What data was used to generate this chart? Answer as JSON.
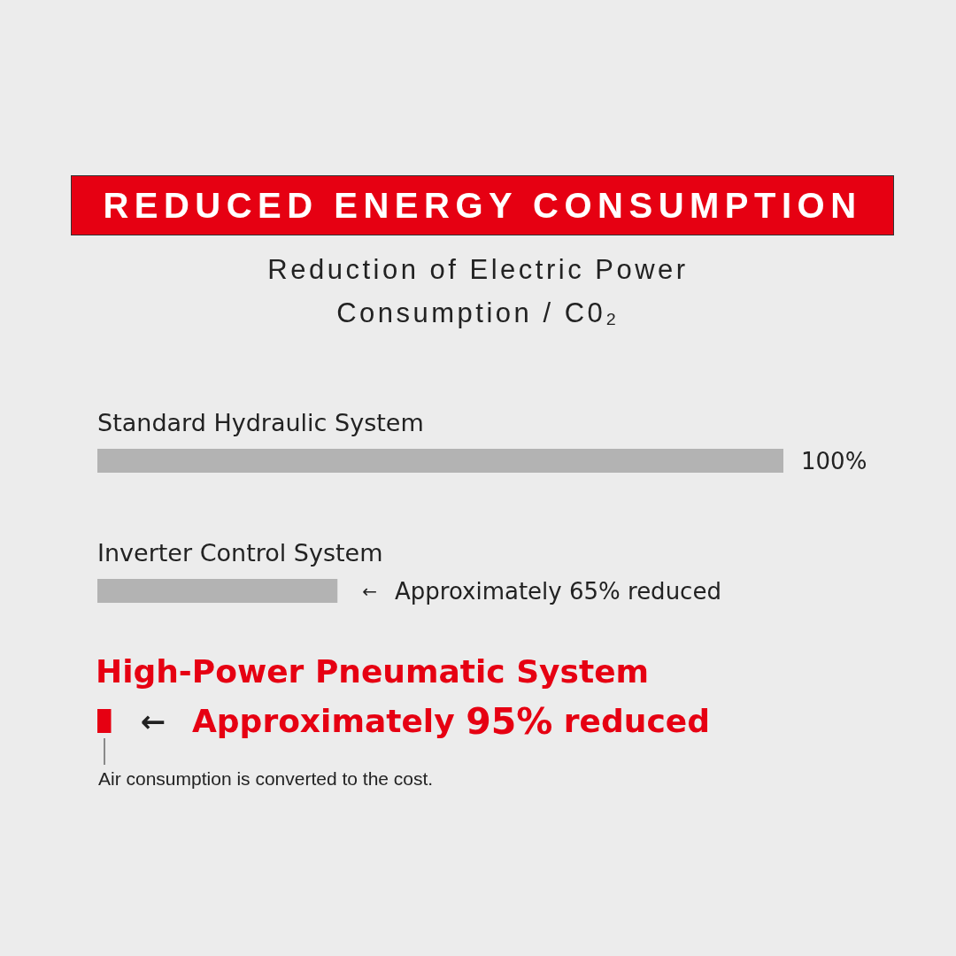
{
  "chart_data": {
    "type": "bar",
    "orientation": "horizontal",
    "title": "REDUCED ENERGY CONSUMPTION",
    "subtitle": "Reduction of Electric Power Consumption / C0₂",
    "categories": [
      "Standard Hydraulic System",
      "Inverter Control System",
      "High-Power Pneumatic System"
    ],
    "values": [
      100,
      35,
      2
    ],
    "colors": [
      "#b3b3b3",
      "#b3b3b3",
      "#e60012"
    ],
    "value_labels": [
      "100%",
      "← Approximately 65% reduced",
      "← Approximately 95% reduced"
    ],
    "annotations": [
      "Air consumption is converted to the cost."
    ],
    "tick_labels": "y"
  }
}
